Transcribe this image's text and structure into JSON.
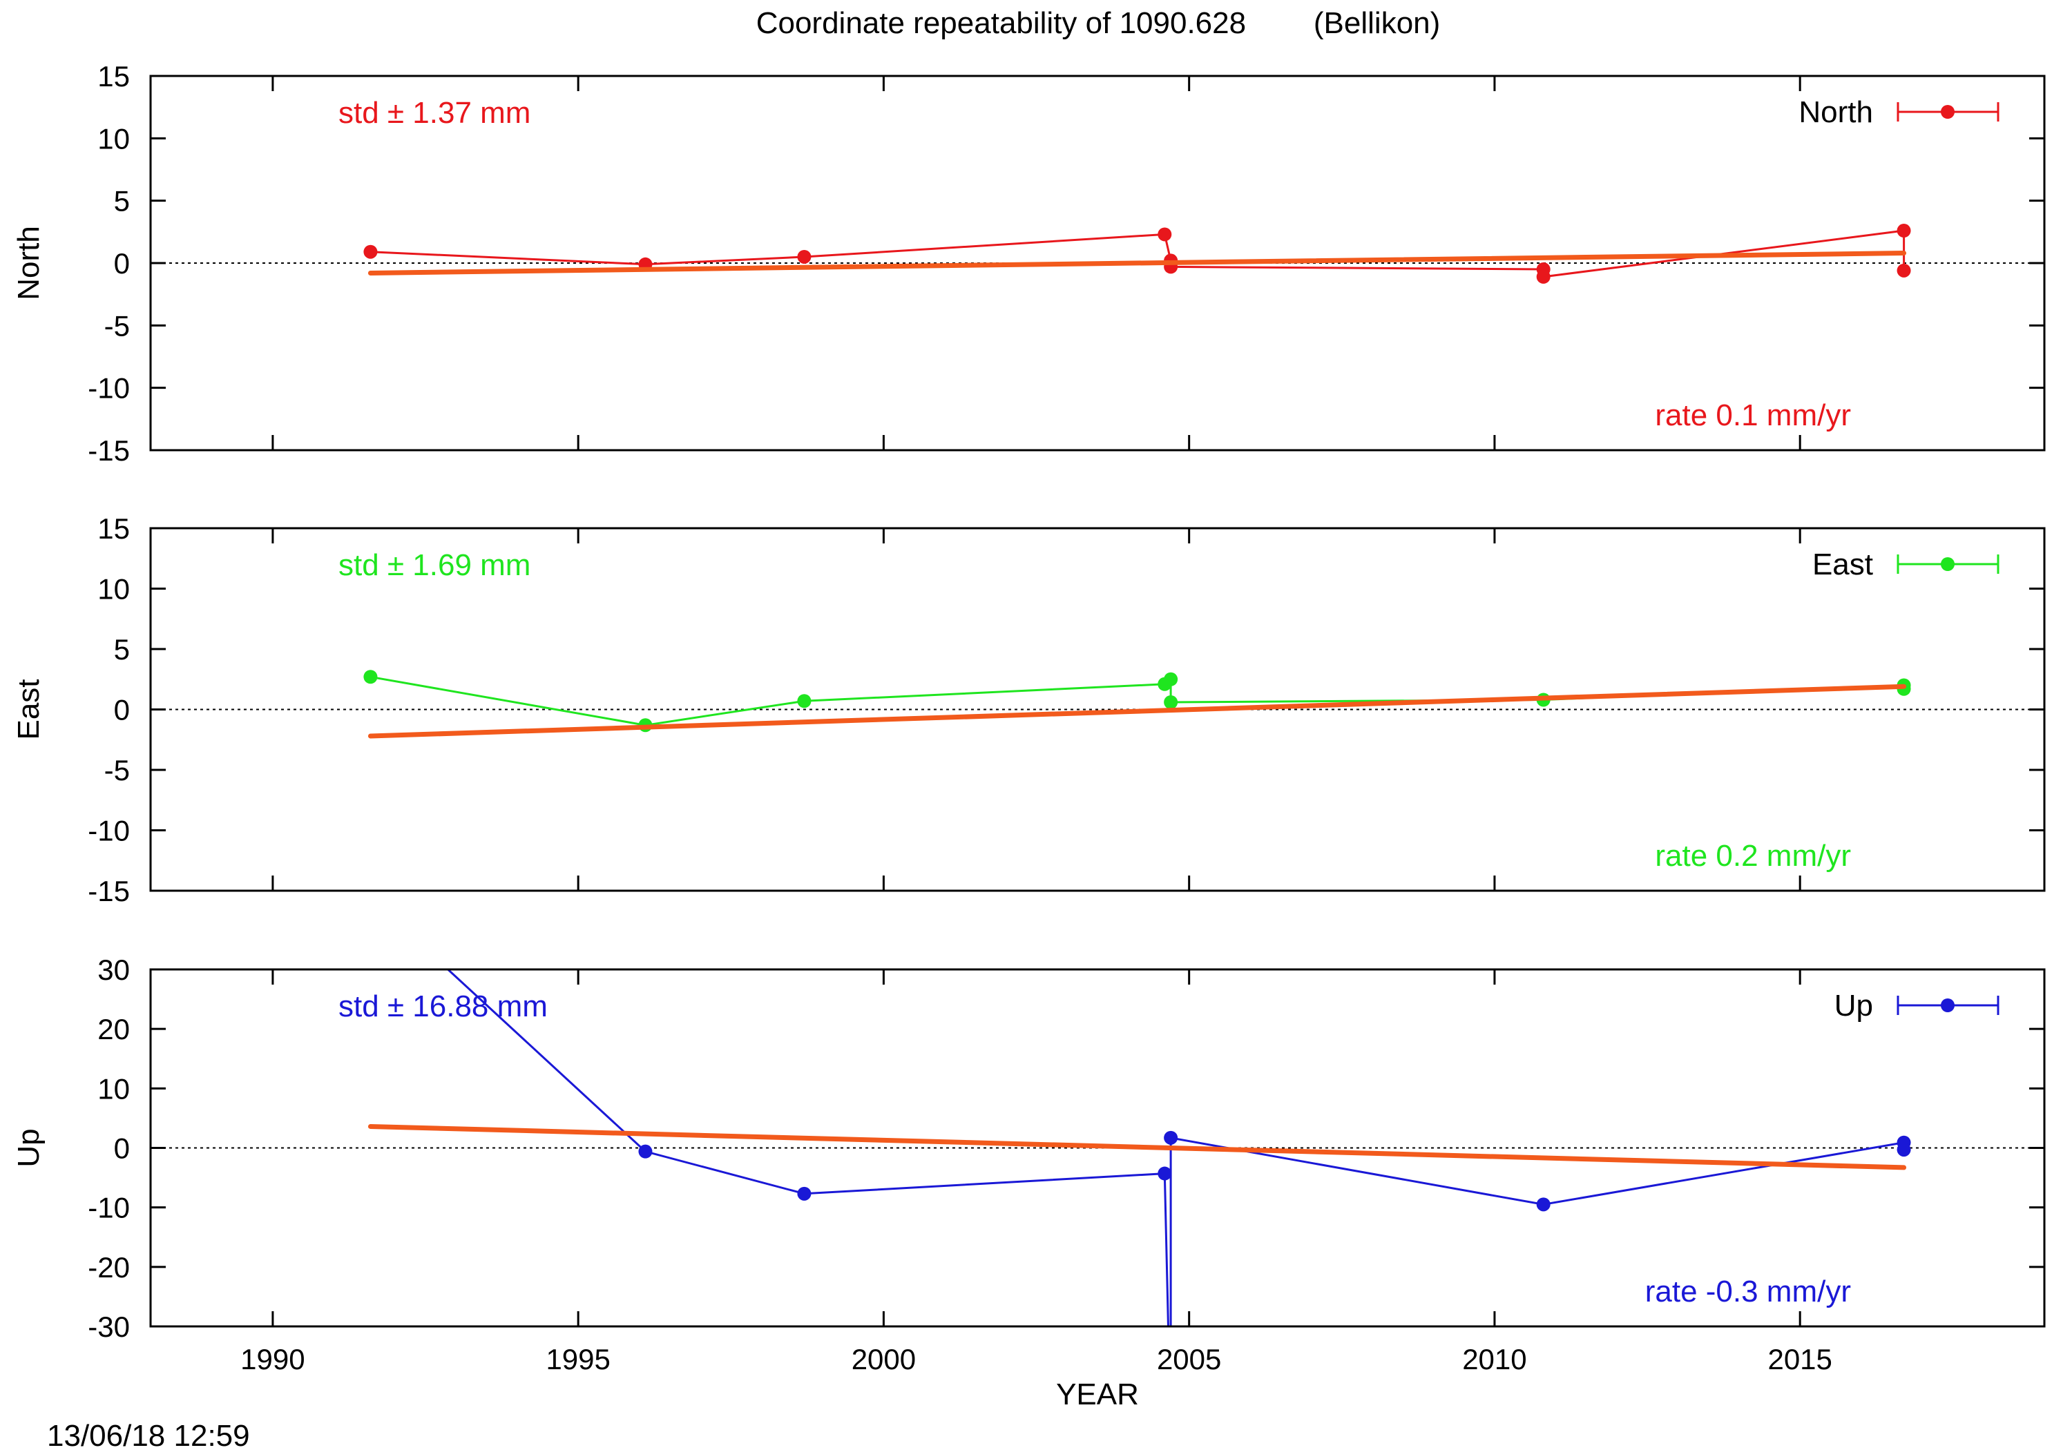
{
  "title": "Coordinate repeatability of 1090.628        (Bellikon)",
  "footer_timestamp": "13/06/18 12:59",
  "colors": {
    "north": "#e8171c",
    "east": "#1fe51f",
    "up": "#1a18d6",
    "trend": "#f25a1c"
  },
  "chart_data": [
    {
      "type": "line",
      "component": "North",
      "ylabel": "North",
      "xlabel": "",
      "xlim": [
        1988,
        2019
      ],
      "ylim": [
        -15,
        15
      ],
      "yticks": [
        15,
        10,
        5,
        0,
        -5,
        -10,
        -15
      ],
      "legend": "North",
      "legend_position": "top-right",
      "std_text": "std ± 1.37 mm",
      "rate_text": "rate  0.1 mm/yr",
      "points": [
        {
          "x": 1991.6,
          "y": 0.9
        },
        {
          "x": 1996.1,
          "y": -0.1
        },
        {
          "x": 1998.7,
          "y": 0.5
        },
        {
          "x": 2004.6,
          "y": 2.3
        },
        {
          "x": 2004.7,
          "y": 0.2
        },
        {
          "x": 2004.7,
          "y": -0.3
        },
        {
          "x": 2010.8,
          "y": -0.5
        },
        {
          "x": 2010.8,
          "y": -1.1
        },
        {
          "x": 2016.7,
          "y": 2.6
        },
        {
          "x": 2016.7,
          "y": -0.6
        }
      ],
      "trend": {
        "x": [
          1991.6,
          2016.7
        ],
        "y": [
          -0.8,
          0.8
        ]
      }
    },
    {
      "type": "line",
      "component": "East",
      "ylabel": "East",
      "xlabel": "",
      "xlim": [
        1988,
        2019
      ],
      "ylim": [
        -15,
        15
      ],
      "yticks": [
        15,
        10,
        5,
        0,
        -5,
        -10,
        -15
      ],
      "legend": "East",
      "legend_position": "top-right",
      "std_text": "std ± 1.69 mm",
      "rate_text": "rate  0.2 mm/yr",
      "points": [
        {
          "x": 1991.6,
          "y": 2.7
        },
        {
          "x": 1996.1,
          "y": -1.3
        },
        {
          "x": 1998.7,
          "y": 0.7
        },
        {
          "x": 2004.6,
          "y": 2.1
        },
        {
          "x": 2004.7,
          "y": 2.5
        },
        {
          "x": 2004.7,
          "y": 0.6
        },
        {
          "x": 2010.8,
          "y": 0.8
        },
        {
          "x": 2016.7,
          "y": 2.0
        },
        {
          "x": 2016.7,
          "y": 1.7
        }
      ],
      "trend": {
        "x": [
          1991.6,
          2016.7
        ],
        "y": [
          -2.2,
          1.9
        ]
      }
    },
    {
      "type": "line",
      "component": "Up",
      "ylabel": "Up",
      "xlabel": "YEAR",
      "xlim": [
        1988,
        2019
      ],
      "ylim": [
        -30,
        30
      ],
      "yticks": [
        30,
        20,
        10,
        0,
        -10,
        -20,
        -30
      ],
      "xticks": [
        1990,
        1995,
        2000,
        2005,
        2010,
        2015
      ],
      "legend": "Up",
      "legend_position": "top-right",
      "std_text": "std ± 16.88 mm",
      "rate_text": "rate -0.3 mm/yr",
      "points": [
        {
          "x": 1991.6,
          "y": 42.0
        },
        {
          "x": 1996.1,
          "y": -0.6
        },
        {
          "x": 1998.7,
          "y": -7.7
        },
        {
          "x": 2004.6,
          "y": -4.3
        },
        {
          "x": 2004.7,
          "y": -48.0
        },
        {
          "x": 2004.7,
          "y": 1.7
        },
        {
          "x": 2010.8,
          "y": -9.5
        },
        {
          "x": 2016.7,
          "y": 0.9
        },
        {
          "x": 2016.7,
          "y": -0.3
        }
      ],
      "trend": {
        "x": [
          1991.6,
          2016.7
        ],
        "y": [
          3.6,
          -3.3
        ]
      }
    }
  ]
}
